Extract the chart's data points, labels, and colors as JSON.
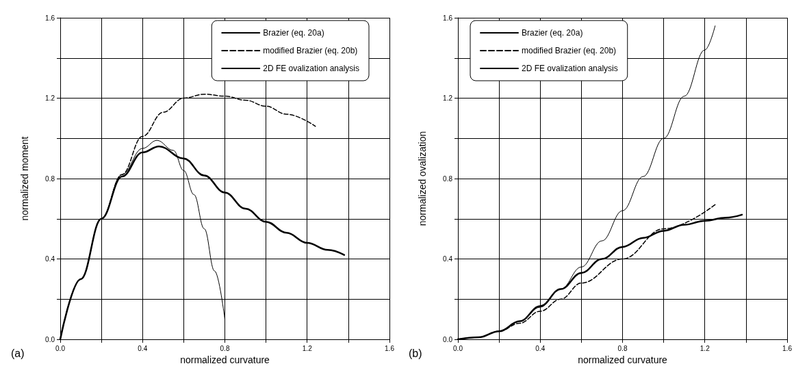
{
  "chart_data": [
    {
      "type": "line",
      "xlabel": "normalized curvature",
      "ylabel": "normalized moment",
      "annotations": [
        "(a)"
      ],
      "xlim": [
        0,
        1.6
      ],
      "ylim": [
        0,
        1.6
      ],
      "xticks": [
        {
          "value": 0,
          "label": "0.0"
        },
        {
          "value": 0.2,
          "label": null
        },
        {
          "value": 0.4,
          "label": "0.4"
        },
        {
          "value": 0.6,
          "label": null
        },
        {
          "value": 0.8,
          "label": "0.8"
        },
        {
          "value": 1.0,
          "label": null
        },
        {
          "value": 1.2,
          "label": "1.2"
        },
        {
          "value": 1.4,
          "label": null
        },
        {
          "value": 1.6,
          "label": "1.6"
        }
      ],
      "yticks": [
        {
          "value": 0,
          "label": "0.0"
        },
        {
          "value": 0.2,
          "label": null
        },
        {
          "value": 0.4,
          "label": "0.4"
        },
        {
          "value": 0.6,
          "label": null
        },
        {
          "value": 0.8,
          "label": "0.8"
        },
        {
          "value": 1.0,
          "label": null
        },
        {
          "value": 1.2,
          "label": "1.2"
        },
        {
          "value": 1.4,
          "label": null
        },
        {
          "value": 1.6,
          "label": "1.6"
        }
      ],
      "grid": true,
      "legend": "top right",
      "marker": "none",
      "series": [
        {
          "name": "Brazier (eq. 20a)",
          "color": "#000000",
          "line_style": "solid",
          "x": [
            0,
            0.1,
            0.2,
            0.3,
            0.4,
            0.47,
            0.55,
            0.6,
            0.65,
            0.7,
            0.75,
            0.8
          ],
          "values": [
            0,
            0.3,
            0.6,
            0.82,
            0.95,
            0.99,
            0.94,
            0.84,
            0.72,
            0.55,
            0.34,
            0.1
          ]
        },
        {
          "name": "modified Brazier (eq. 20b)",
          "color": "#000000",
          "line_style": "dashed",
          "x": [
            0,
            0.1,
            0.2,
            0.3,
            0.4,
            0.5,
            0.6,
            0.7,
            0.8,
            0.9,
            1.0,
            1.1,
            1.24
          ],
          "values": [
            0,
            0.3,
            0.6,
            0.82,
            1.01,
            1.13,
            1.2,
            1.22,
            1.21,
            1.19,
            1.16,
            1.12,
            1.06
          ]
        },
        {
          "name": "2D FE ovalization analysis",
          "color": "#000000",
          "line_style": "solid",
          "x": [
            0,
            0.1,
            0.2,
            0.3,
            0.4,
            0.48,
            0.6,
            0.7,
            0.8,
            0.9,
            1.0,
            1.1,
            1.2,
            1.3,
            1.38
          ],
          "values": [
            0,
            0.3,
            0.6,
            0.81,
            0.93,
            0.96,
            0.9,
            0.815,
            0.73,
            0.65,
            0.585,
            0.53,
            0.48,
            0.445,
            0.42
          ]
        }
      ]
    },
    {
      "type": "line",
      "xlabel": "normalized curvature",
      "ylabel": "normalized ovalization",
      "annotations": [
        "(b)"
      ],
      "xlim": [
        0,
        1.6
      ],
      "ylim": [
        0,
        1.6
      ],
      "xticks": [
        {
          "value": 0,
          "label": "0.0"
        },
        {
          "value": 0.2,
          "label": null
        },
        {
          "value": 0.4,
          "label": "0.4"
        },
        {
          "value": 0.6,
          "label": null
        },
        {
          "value": 0.8,
          "label": "0.8"
        },
        {
          "value": 1.0,
          "label": null
        },
        {
          "value": 1.2,
          "label": "1.2"
        },
        {
          "value": 1.4,
          "label": null
        },
        {
          "value": 1.6,
          "label": "1.6"
        }
      ],
      "yticks": [
        {
          "value": 0,
          "label": "0.0"
        },
        {
          "value": 0.2,
          "label": null
        },
        {
          "value": 0.4,
          "label": "0.4"
        },
        {
          "value": 0.6,
          "label": null
        },
        {
          "value": 0.8,
          "label": "0.8"
        },
        {
          "value": 1.0,
          "label": null
        },
        {
          "value": 1.2,
          "label": "1.2"
        },
        {
          "value": 1.4,
          "label": null
        },
        {
          "value": 1.6,
          "label": "1.6"
        }
      ],
      "grid": true,
      "legend": "top left",
      "marker": "none",
      "series": [
        {
          "name": "Brazier (eq. 20a)",
          "color": "#000000",
          "line_style": "solid",
          "x": [
            0,
            0.1,
            0.2,
            0.3,
            0.4,
            0.5,
            0.6,
            0.7,
            0.8,
            0.9,
            1.0,
            1.1,
            1.2,
            1.25
          ],
          "values": [
            0,
            0.01,
            0.04,
            0.09,
            0.16,
            0.25,
            0.36,
            0.49,
            0.64,
            0.81,
            1.0,
            1.21,
            1.44,
            1.56
          ]
        },
        {
          "name": "modified Brazier (eq. 20b)",
          "color": "#000000",
          "line_style": "dashed",
          "x": [
            0,
            0.1,
            0.2,
            0.3,
            0.4,
            0.5,
            0.6,
            0.8,
            1.0,
            1.25
          ],
          "values": [
            0,
            0.01,
            0.04,
            0.08,
            0.14,
            0.2,
            0.28,
            0.4,
            0.55,
            0.67
          ]
        },
        {
          "name": "2D FE ovalization analysis",
          "color": "#000000",
          "line_style": "solid",
          "x": [
            0,
            0.1,
            0.2,
            0.3,
            0.4,
            0.5,
            0.6,
            0.7,
            0.8,
            0.9,
            1.0,
            1.1,
            1.2,
            1.3,
            1.38
          ],
          "values": [
            0,
            0.01,
            0.04,
            0.09,
            0.165,
            0.25,
            0.33,
            0.4,
            0.46,
            0.505,
            0.54,
            0.57,
            0.59,
            0.605,
            0.62
          ]
        }
      ]
    }
  ]
}
